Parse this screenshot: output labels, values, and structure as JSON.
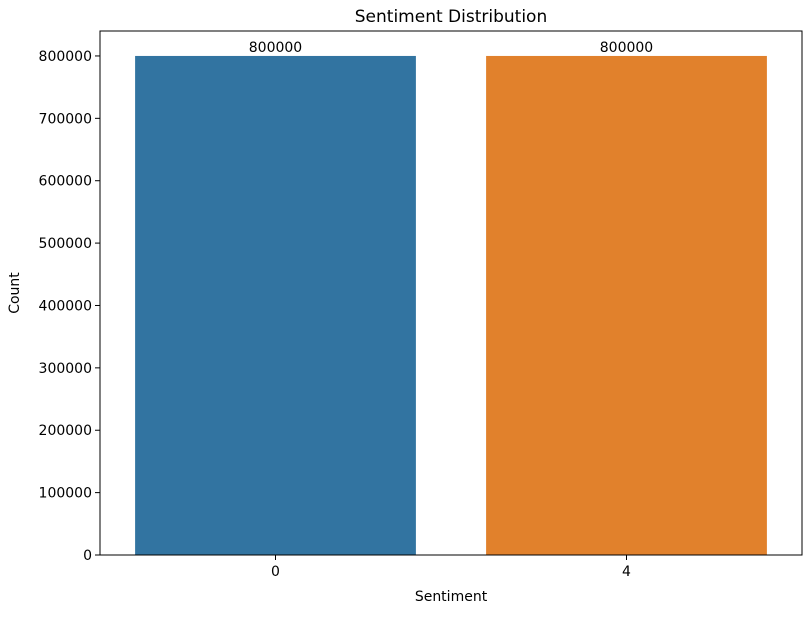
{
  "chart_data": {
    "type": "bar",
    "title": "Sentiment Distribution",
    "xlabel": "Sentiment",
    "ylabel": "Count",
    "categories": [
      "0",
      "4"
    ],
    "values": [
      800000,
      800000
    ],
    "data_labels": [
      "800000",
      "800000"
    ],
    "colors": [
      "#3274a1",
      "#e1812c"
    ],
    "ylim": [
      0,
      840000
    ],
    "yticks": [
      0,
      100000,
      200000,
      300000,
      400000,
      500000,
      600000,
      700000,
      800000
    ],
    "ytick_labels": [
      "0",
      "100000",
      "200000",
      "300000",
      "400000",
      "500000",
      "600000",
      "700000",
      "800000"
    ],
    "grid": false,
    "legend": "none"
  }
}
